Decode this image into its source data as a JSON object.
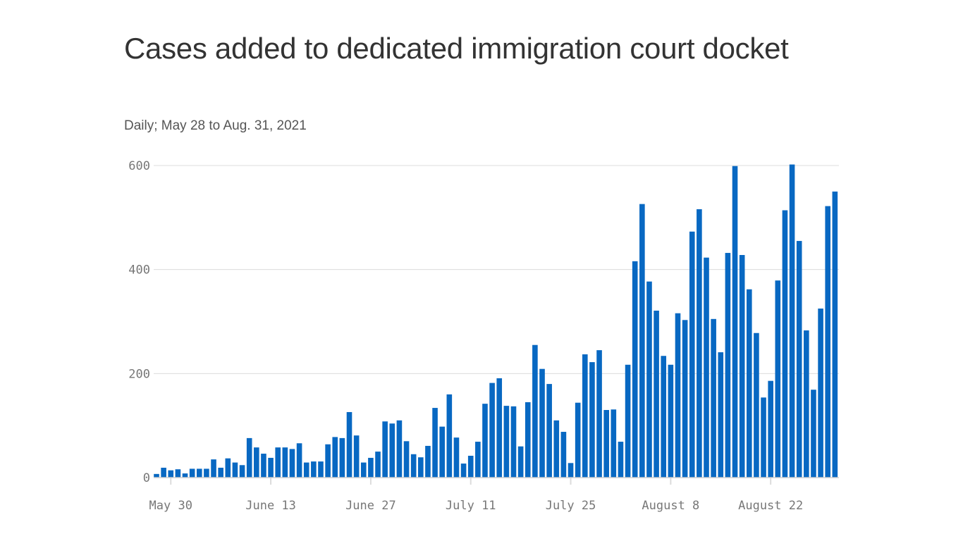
{
  "chart_data": {
    "type": "bar",
    "title": "Cases added to dedicated immigration court docket",
    "subtitle": "Daily; May 28 to Aug. 31, 2021",
    "xlabel": "",
    "ylabel": "",
    "ylim": [
      0,
      600
    ],
    "yticks": [
      "0",
      "200",
      "400",
      "600"
    ],
    "ytick_values": [
      0,
      200,
      400,
      600
    ],
    "xticks": [
      {
        "label": "May 30",
        "index": 2
      },
      {
        "label": "June 13",
        "index": 16
      },
      {
        "label": "June 27",
        "index": 30
      },
      {
        "label": "July 11",
        "index": 44
      },
      {
        "label": "July 25",
        "index": 58
      },
      {
        "label": "August 8",
        "index": 72
      },
      {
        "label": "August 22",
        "index": 86
      }
    ],
    "x_start": "2021-05-28",
    "x_end": "2021-08-31",
    "grid": true,
    "bar_color": "#0868c2",
    "values": [
      7,
      19,
      14,
      16,
      8,
      17,
      17,
      17,
      35,
      19,
      37,
      29,
      24,
      76,
      58,
      46,
      38,
      58,
      58,
      55,
      66,
      29,
      31,
      31,
      64,
      78,
      76,
      126,
      81,
      29,
      38,
      50,
      108,
      104,
      110,
      70,
      45,
      39,
      61,
      134,
      98,
      160,
      77,
      27,
      42,
      69,
      142,
      182,
      191,
      138,
      137,
      60,
      145,
      255,
      209,
      180,
      110,
      88,
      28,
      144,
      237,
      222,
      245,
      130,
      131,
      69,
      217,
      416,
      526,
      377,
      321,
      234,
      217,
      316,
      303,
      473,
      516,
      423,
      305,
      241,
      432,
      599,
      428,
      362,
      278,
      154,
      186,
      379,
      514,
      602,
      455,
      283,
      169,
      325,
      522,
      550
    ]
  }
}
